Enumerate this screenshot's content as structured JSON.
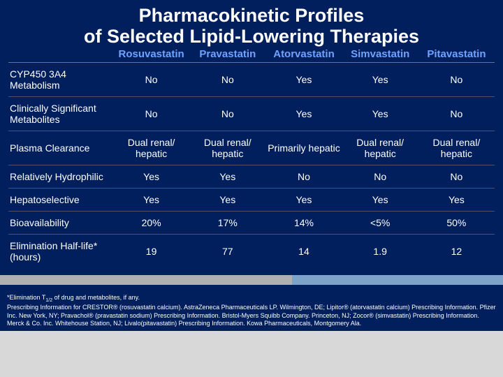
{
  "title_line1": "Pharmacokinetic Profiles",
  "title_line2": "of Selected Lipid-Lowering Therapies",
  "columns": [
    "Rosuvastatin",
    "Pravastatin",
    "Atorvastatin",
    "Simvastatin",
    "Pitavastatin"
  ],
  "rows": [
    {
      "label": "CYP450 3A4 Metabolism",
      "values": [
        "No",
        "No",
        "Yes",
        "Yes",
        "No"
      ]
    },
    {
      "label": "Clinically Significant Metabolites",
      "values": [
        "No",
        "No",
        "Yes",
        "Yes",
        "No"
      ]
    },
    {
      "label": "Plasma Clearance",
      "values": [
        "Dual renal/ hepatic",
        "Dual renal/ hepatic",
        "Primarily hepatic",
        "Dual renal/ hepatic",
        "Dual renal/ hepatic"
      ]
    },
    {
      "label": "Relatively Hydrophilic",
      "values": [
        "Yes",
        "Yes",
        "No",
        "No",
        "No"
      ]
    },
    {
      "label": "Hepatoselective",
      "values": [
        "Yes",
        "Yes",
        "Yes",
        "Yes",
        "Yes"
      ]
    },
    {
      "label": "Bioavailability",
      "values": [
        "20%",
        "17%",
        "14%",
        "<5%",
        "50%"
      ]
    },
    {
      "label": "Elimination Half-life* (hours)",
      "values": [
        "19",
        "77",
        "14",
        "1.9",
        "12"
      ]
    }
  ],
  "bar": {
    "seg1_pct": 58,
    "seg2_pct": 42,
    "seg1_color": "#b0b0b0",
    "seg2_color": "#7da3c8"
  },
  "footnote_l1": "*Elimination T",
  "footnote_sub": "1/2",
  "footnote_l1b": " of drug and metabolites, if any.",
  "footnote_rest": "Prescribing Information for CRESTOR® (rosuvastatin calcium). AstraZeneca Pharmaceuticals LP. Wilmington, DE; Lipitor® (atorvastatin calcium) Prescribing Information. Pfizer Inc. New York, NY; Pravachol® (pravastatin sodium) Prescribing Information. Bristol-Myers Squibb Company. Princeton, NJ; Zocor® (simvastatin) Prescribing Information. Merck & Co. Inc. Whitehouse Station, NJ; Livalo(pitavastatin) Prescribing Information. Kowa Pharmaceuticals, Montgomery Ala.",
  "colors": {
    "bg": "#001f5c",
    "header_text": "#6fa3ff"
  }
}
